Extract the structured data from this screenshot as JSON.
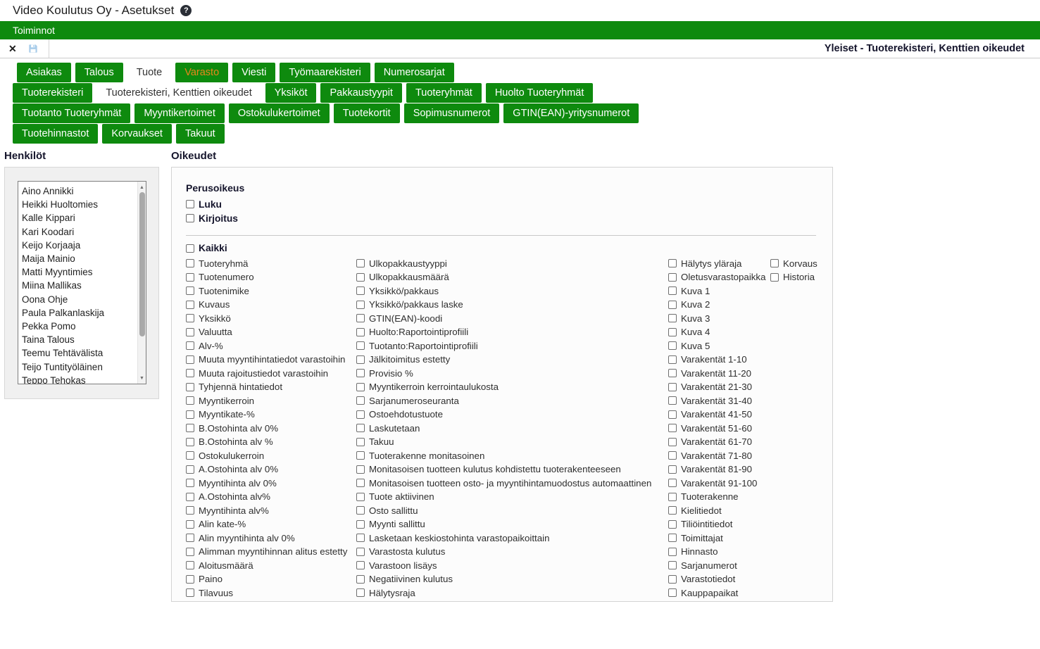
{
  "window": {
    "title": "Video Koulutus Oy - Asetukset",
    "help_glyph": "?"
  },
  "menubar": {
    "items": [
      {
        "label": "Toiminnot"
      }
    ]
  },
  "toolbar": {
    "close_glyph": "✕",
    "save_icon": "floppy-disk",
    "context_title": "Yleiset - Tuoterekisteri, Kenttien oikeudet"
  },
  "tabs": {
    "rows": [
      {
        "items": [
          {
            "label": "Asiakas"
          },
          {
            "label": "Talous"
          },
          {
            "label": "Tuote",
            "active": true
          },
          {
            "label": "Varasto",
            "accent": true
          },
          {
            "label": "Viesti"
          },
          {
            "label": "Työmaarekisteri"
          },
          {
            "label": "Numerosarjat"
          }
        ]
      },
      {
        "items": [
          {
            "label": "Tuoterekisteri"
          },
          {
            "label": "Tuoterekisteri, Kenttien oikeudet",
            "active": true
          },
          {
            "label": "Yksiköt"
          },
          {
            "label": "Pakkaustyypit"
          },
          {
            "label": "Tuoteryhmät"
          },
          {
            "label": "Huolto Tuoteryhmät"
          }
        ]
      },
      {
        "items": [
          {
            "label": "Tuotanto Tuoteryhmät"
          },
          {
            "label": "Myyntikertoimet"
          },
          {
            "label": "Ostokulukertoimet"
          },
          {
            "label": "Tuotekortit"
          },
          {
            "label": "Sopimusnumerot"
          },
          {
            "label": "GTIN(EAN)-yritysnumerot"
          }
        ]
      },
      {
        "items": [
          {
            "label": "Tuotehinnastot"
          },
          {
            "label": "Korvaukset"
          },
          {
            "label": "Takuut"
          }
        ]
      }
    ]
  },
  "people": {
    "heading": "Henkilöt",
    "scroll_up_glyph": "▲",
    "scroll_down_glyph": "▼",
    "items": [
      "Aino Annikki",
      "Heikki Huoltomies",
      "Kalle Kippari",
      "Kari Koodari",
      "Keijo Korjaaja",
      "Maija Mainio",
      "Matti Myyntimies",
      "Miina Mallikas",
      "Oona Ohje",
      "Paula Palkanlaskija",
      "Pekka Pomo",
      "Taina Talous",
      "Teemu Tehtävälista",
      "Teijo Tuntityöläinen",
      "Teppo Tehokas"
    ]
  },
  "permissions": {
    "heading": "Oikeudet",
    "basic": {
      "heading": "Perusoikeus",
      "items": [
        "Luku",
        "Kirjoitus"
      ]
    },
    "all_label": "Kaikki",
    "checked": false,
    "columns": [
      [
        "Tuoteryhmä",
        "Tuotenumero",
        "Tuotenimike",
        "Kuvaus",
        "Yksikkö",
        "Valuutta",
        "Alv-%",
        "Muuta myyntihintatiedot varastoihin",
        "Muuta rajoitustiedot varastoihin",
        "Tyhjennä hintatiedot",
        "Myyntikerroin",
        "Myyntikate-%",
        "B.Ostohinta alv 0%",
        "B.Ostohinta alv %",
        "Ostokulukerroin",
        "A.Ostohinta alv 0%",
        "Myyntihinta alv 0%",
        "A.Ostohinta alv%",
        "Myyntihinta alv%",
        "Alin kate-%",
        "Alin myyntihinta alv 0%",
        "Alimman myyntihinnan alitus estetty",
        "Aloitusmäärä",
        "Paino",
        "Tilavuus"
      ],
      [
        "Ulkopakkaustyyppi",
        "Ulkopakkausmäärä",
        "Yksikkö/pakkaus",
        "Yksikkö/pakkaus laske",
        "GTIN(EAN)-koodi",
        "Huolto:Raportointiprofiili",
        "Tuotanto:Raportointiprofiili",
        "Jälkitoimitus estetty",
        "Provisio %",
        "Myyntikerroin kerrointaulukosta",
        "Sarjanumeroseuranta",
        "Ostoehdotustuote",
        "Laskutetaan",
        "Takuu",
        "Tuoterakenne monitasoinen",
        "Monitasoisen tuotteen kulutus kohdistettu tuoterakenteeseen",
        "Monitasoisen tuotteen osto- ja myyntihintamuodostus automaattinen",
        "Tuote aktiivinen",
        "Osto sallittu",
        "Myynti sallittu",
        "Lasketaan keskiostohinta varastopaikoittain",
        "Varastosta kulutus",
        "Varastoon lisäys",
        "Negatiivinen kulutus",
        "Hälytysraja"
      ],
      [
        "Hälytys yläraja",
        "Oletusvarastopaikka",
        "Kuva 1",
        "Kuva 2",
        "Kuva 3",
        "Kuva 4",
        "Kuva 5",
        "Varakentät 1-10",
        "Varakentät 11-20",
        "Varakentät 21-30",
        "Varakentät 31-40",
        "Varakentät 41-50",
        "Varakentät 51-60",
        "Varakentät 61-70",
        "Varakentät 71-80",
        "Varakentät 81-90",
        "Varakentät 91-100",
        "Tuoterakenne",
        "Kielitiedot",
        "Tiliöintitiedot",
        "Toimittajat",
        "Hinnasto",
        "Sarjanumerot",
        "Varastotiedot",
        "Kauppapaikat"
      ],
      [
        "Korvaus",
        "Historia"
      ]
    ]
  },
  "colors": {
    "green": "#0e8a0e",
    "accent_orange": "#e8871c",
    "save_blue": "#a9cdea"
  }
}
